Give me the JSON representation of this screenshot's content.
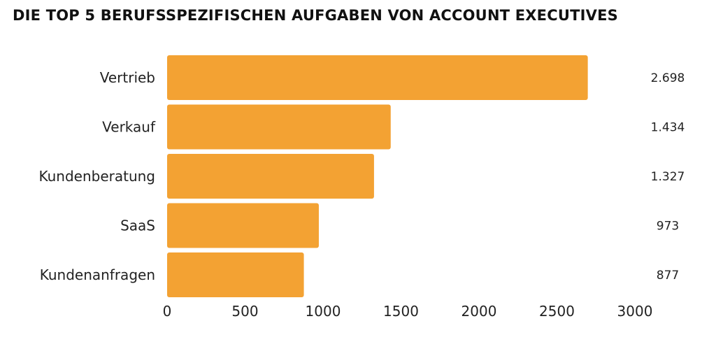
{
  "chart_data": {
    "type": "bar",
    "orientation": "horizontal",
    "title": "DIE TOP 5 BERUFSSPEZIFISCHEN AUFGABEN VON ACCOUNT EXECUTIVES",
    "xlabel": "",
    "ylabel": "",
    "categories": [
      "Vertrieb",
      "Verkauf",
      "Kundenberatung",
      "SaaS",
      "Kundenanfragen"
    ],
    "values": [
      2698,
      1434,
      1327,
      973,
      877
    ],
    "value_labels": [
      "2.698",
      "1.434",
      "1.327",
      "973",
      "877"
    ],
    "xlim": [
      0,
      3000
    ],
    "xticks": [
      0,
      500,
      1000,
      1500,
      2000,
      2500,
      3000
    ],
    "xtick_labels": [
      "0",
      "500",
      "1000",
      "1500",
      "2000",
      "2500",
      "3000"
    ],
    "grid": false,
    "legend": "none",
    "bar_color": "#F3A233"
  }
}
